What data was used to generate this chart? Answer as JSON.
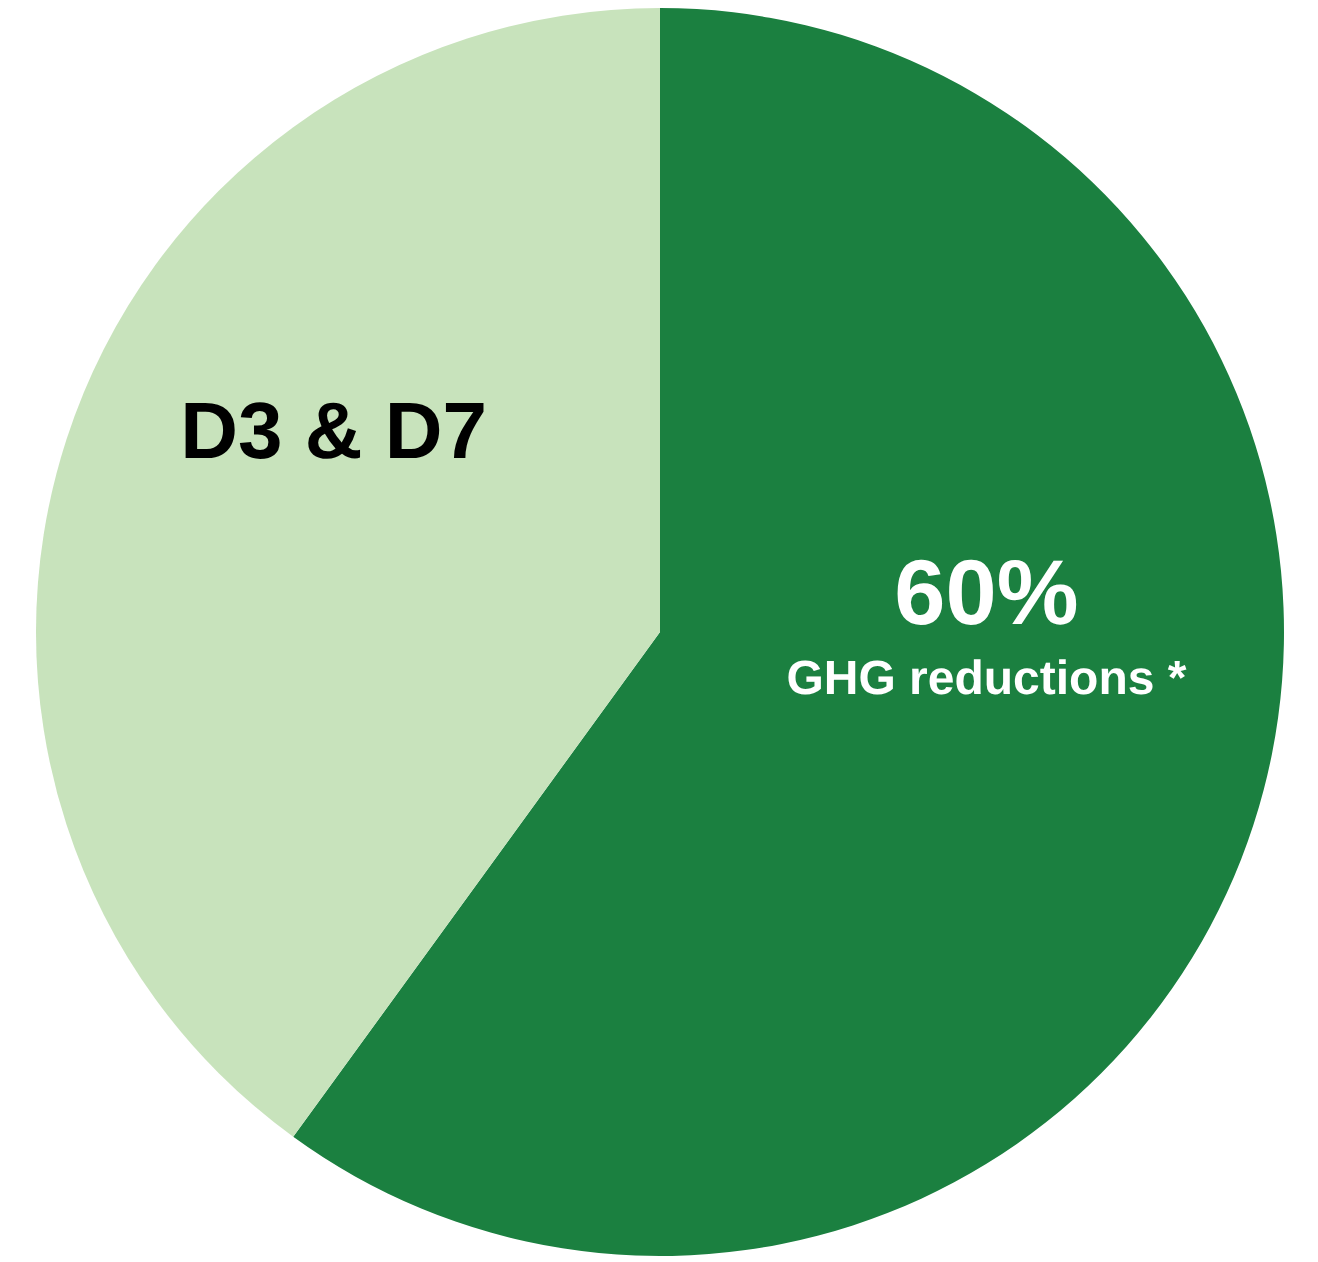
{
  "chart_data": {
    "type": "pie",
    "categories": [
      "GHG reductions *",
      "D3 & D7"
    ],
    "values": [
      60,
      40
    ],
    "colors": [
      "#1b8040",
      "#c8e3bc"
    ],
    "value_labels": [
      "60%",
      null
    ]
  }
}
